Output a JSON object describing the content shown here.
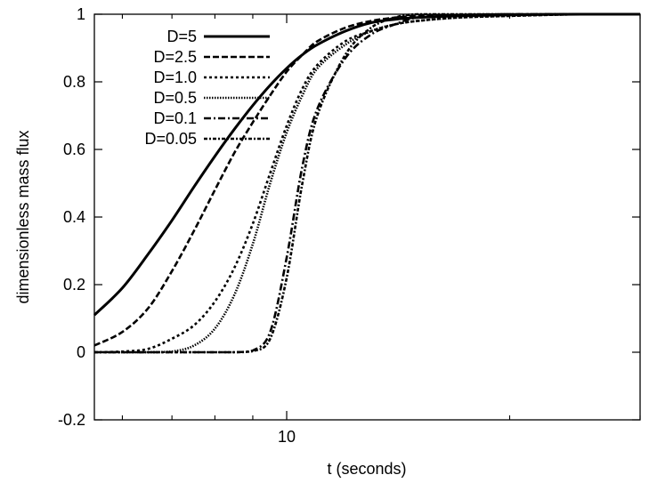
{
  "chart_data": {
    "type": "line",
    "title": "",
    "xlabel": "t (seconds)",
    "ylabel": "dimensionless mass flux",
    "x_scale": "log",
    "xlim": [
      5.5,
      30
    ],
    "ylim": [
      -0.2,
      1.0
    ],
    "x_tick_labels": [
      {
        "value": 10,
        "label": "10"
      }
    ],
    "x_minor_ticks": [
      6,
      7,
      8,
      9,
      20,
      30
    ],
    "y_ticks": [
      {
        "value": -0.2,
        "label": "-0.2"
      },
      {
        "value": 0,
        "label": "0"
      },
      {
        "value": 0.2,
        "label": "0.2"
      },
      {
        "value": 0.4,
        "label": "0.4"
      },
      {
        "value": 0.6,
        "label": "0.6"
      },
      {
        "value": 0.8,
        "label": "0.8"
      },
      {
        "value": 1.0,
        "label": "1"
      }
    ],
    "grid": false,
    "legend_position": "top-left",
    "x": [
      5.5,
      6,
      6.5,
      7,
      7.5,
      8,
      8.5,
      9,
      9.5,
      10,
      10.5,
      11,
      12,
      13,
      14,
      15,
      17,
      20,
      25,
      30
    ],
    "series": [
      {
        "name": "D=5",
        "dash": "solid",
        "values": [
          0.11,
          0.19,
          0.29,
          0.39,
          0.49,
          0.58,
          0.66,
          0.73,
          0.79,
          0.84,
          0.88,
          0.91,
          0.95,
          0.975,
          0.985,
          0.99,
          0.995,
          0.998,
          1.0,
          1.0
        ]
      },
      {
        "name": "D=2.5",
        "dash": "dashed",
        "values": [
          0.02,
          0.06,
          0.13,
          0.24,
          0.36,
          0.48,
          0.59,
          0.68,
          0.76,
          0.83,
          0.88,
          0.92,
          0.96,
          0.98,
          0.99,
          0.995,
          0.998,
          1.0,
          1.0,
          1.0
        ]
      },
      {
        "name": "D=1.0",
        "dash": "dotted",
        "values": [
          0.0,
          0.002,
          0.01,
          0.04,
          0.08,
          0.15,
          0.25,
          0.38,
          0.53,
          0.67,
          0.78,
          0.85,
          0.92,
          0.95,
          0.97,
          0.98,
          0.99,
          0.995,
          1.0,
          1.0
        ]
      },
      {
        "name": "D=0.5",
        "dash": "fine-dotted",
        "values": [
          0.0,
          0.0,
          0.0,
          0.002,
          0.02,
          0.07,
          0.17,
          0.32,
          0.5,
          0.65,
          0.76,
          0.84,
          0.91,
          0.95,
          0.97,
          0.98,
          0.99,
          0.995,
          1.0,
          1.0
        ]
      },
      {
        "name": "D=0.1",
        "dash": "dash-dot",
        "values": [
          0.0,
          0.0,
          0.0,
          0.0,
          0.0,
          0.0,
          0.0,
          0.005,
          0.06,
          0.28,
          0.55,
          0.72,
          0.87,
          0.94,
          0.97,
          0.99,
          0.995,
          1.0,
          1.0,
          1.0
        ]
      },
      {
        "name": "D=0.05",
        "dash": "dash-dot-dot",
        "values": [
          0.0,
          0.0,
          0.0,
          0.0,
          0.0,
          0.0,
          0.0,
          0.003,
          0.04,
          0.22,
          0.5,
          0.7,
          0.88,
          0.96,
          0.99,
          1.0,
          1.0,
          1.0,
          1.0,
          1.0
        ]
      }
    ]
  }
}
